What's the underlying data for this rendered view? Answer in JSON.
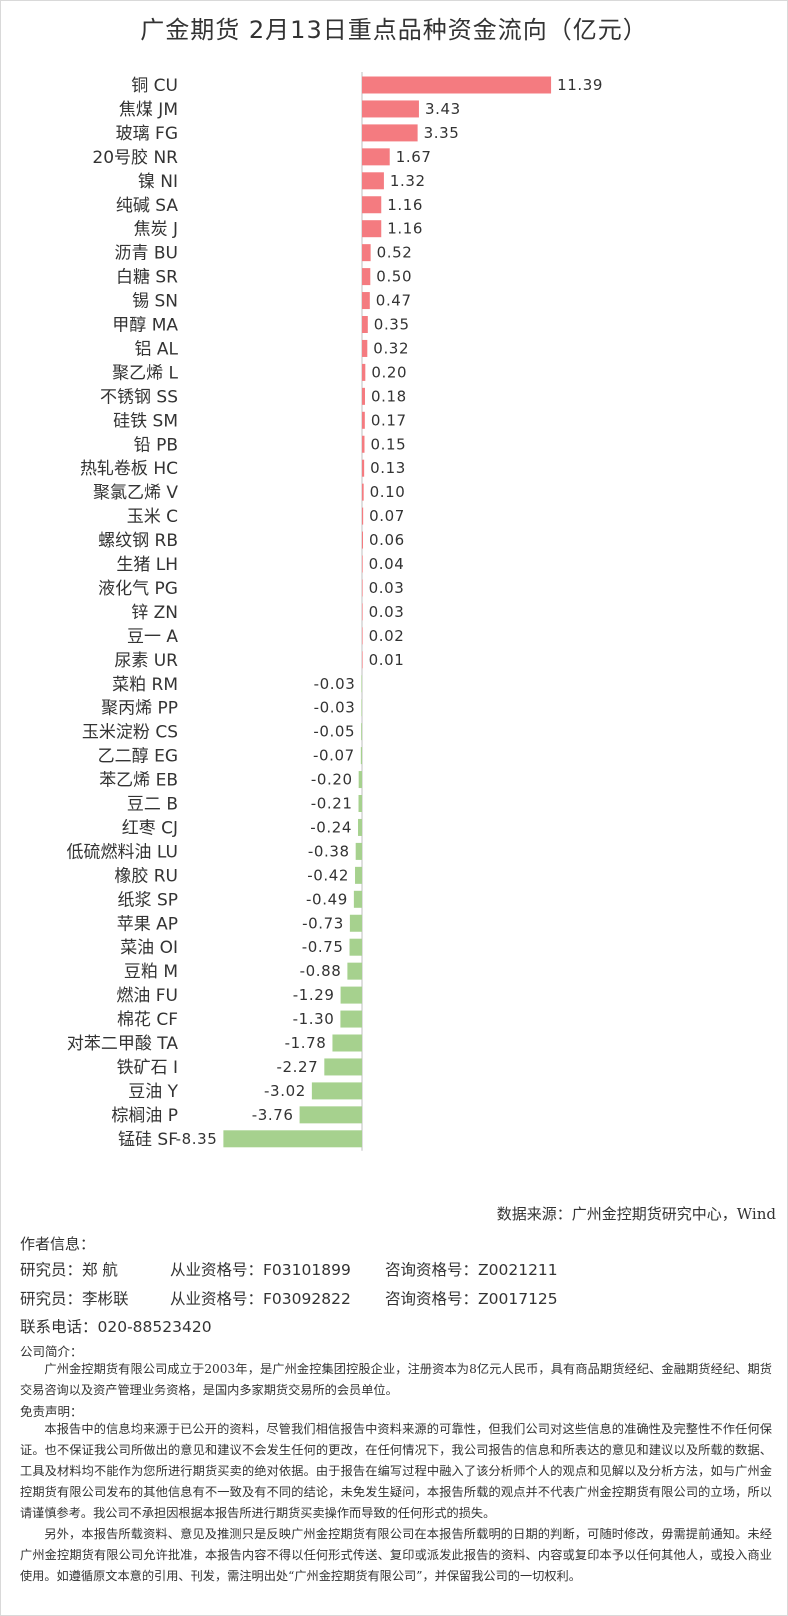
{
  "title": "广金期货 2月13日重点品种资金流向（亿元）",
  "colors": {
    "positive": "#f47b80",
    "negative": "#a6d18e",
    "axis": "#bfbfbf",
    "text": "#333333"
  },
  "chart_data": {
    "type": "bar",
    "orientation": "horizontal",
    "title": "广金期货 2月13日重点品种资金流向（亿元）",
    "value_format": "2 decimals",
    "categories": [
      "铜 CU",
      "焦煤 JM",
      "玻璃 FG",
      "20号胶 NR",
      "镍 NI",
      "纯碱 SA",
      "焦炭 J",
      "沥青 BU",
      "白糖 SR",
      "锡 SN",
      "甲醇 MA",
      "铝 AL",
      "聚乙烯 L",
      "不锈钢 SS",
      "硅铁 SM",
      "铅 PB",
      "热轧卷板 HC",
      "聚氯乙烯 V",
      "玉米 C",
      "螺纹钢 RB",
      "生猪 LH",
      "液化气 PG",
      "锌 ZN",
      "豆一 A",
      "尿素 UR",
      "菜粕 RM",
      "聚丙烯 PP",
      "玉米淀粉 CS",
      "乙二醇 EG",
      "苯乙烯 EB",
      "豆二 B",
      "红枣 CJ",
      "低硫燃料油 LU",
      "橡胶 RU",
      "纸浆 SP",
      "苹果 AP",
      "菜油 OI",
      "豆粕 M",
      "燃油 FU",
      "棉花 CF",
      "对苯二甲酸 TA",
      "铁矿石 I",
      "豆油 Y",
      "棕榈油 P",
      "锰硅 SF"
    ],
    "values": [
      11.39,
      3.43,
      3.35,
      1.67,
      1.32,
      1.16,
      1.16,
      0.52,
      0.5,
      0.47,
      0.35,
      0.32,
      0.2,
      0.18,
      0.17,
      0.15,
      0.13,
      0.1,
      0.07,
      0.06,
      0.04,
      0.03,
      0.03,
      0.02,
      0.01,
      -0.03,
      -0.03,
      -0.05,
      -0.07,
      -0.2,
      -0.21,
      -0.24,
      -0.38,
      -0.42,
      -0.49,
      -0.73,
      -0.75,
      -0.88,
      -1.29,
      -1.3,
      -1.78,
      -2.27,
      -3.02,
      -3.76,
      -8.35
    ],
    "grid": false,
    "legend": "none"
  },
  "source": "数据来源：广州金控期货研究中心，Wind",
  "author_header": "作者信息：",
  "researchers": [
    {
      "role": "研究员：郑 航",
      "cert": "从业资格号：F03101899",
      "consult": "咨询资格号：Z0021211"
    },
    {
      "role": "研究员：李彬联",
      "cert": "从业资格号：F03092822",
      "consult": "咨询资格号：Z0017125"
    }
  ],
  "phone": "联系电话：020-88523420",
  "company_header": "公司简介：",
  "company_text": "广州金控期货有限公司成立于2003年，是广州金控集团控股企业，注册资本为8亿元人民币，具有商品期货经纪、金融期货经纪、期货交易咨询以及资产管理业务资格，是国内多家期货交易所的会员单位。",
  "disclaimer_header": "免责声明：",
  "disclaimer_p1": "本报告中的信息均来源于已公开的资料，尽管我们相信报告中资料来源的可靠性，但我们公司对这些信息的准确性及完整性不作任何保证。也不保证我公司所做出的意见和建议不会发生任何的更改，在任何情况下，我公司报告的信息和所表达的意见和建议以及所载的数据、工具及材料均不能作为您所进行期货买卖的绝对依据。由于报告在编写过程中融入了该分析师个人的观点和见解以及分析方法，如与广州金控期货有限公司发布的其他信息有不一致及有不同的结论，未免发生疑问，本报告所载的观点并不代表广州金控期货有限公司的立场，所以请谨慎参考。我公司不承担因根据本报告所进行期货买卖操作而导致的任何形式的损失。",
  "disclaimer_p2": "另外，本报告所载资料、意见及推测只是反映广州金控期货有限公司在本报告所载明的日期的判断，可随时修改，毋需提前通知。未经广州金控期货有限公司允许批准，本报告内容不得以任何形式传送、复印或派发此报告的资料、内容或复印本予以任何其他人，或投入商业使用。如遵循原文本意的引用、刊发，需注明出处“广州金控期货有限公司”，并保留我公司的一切权利。"
}
